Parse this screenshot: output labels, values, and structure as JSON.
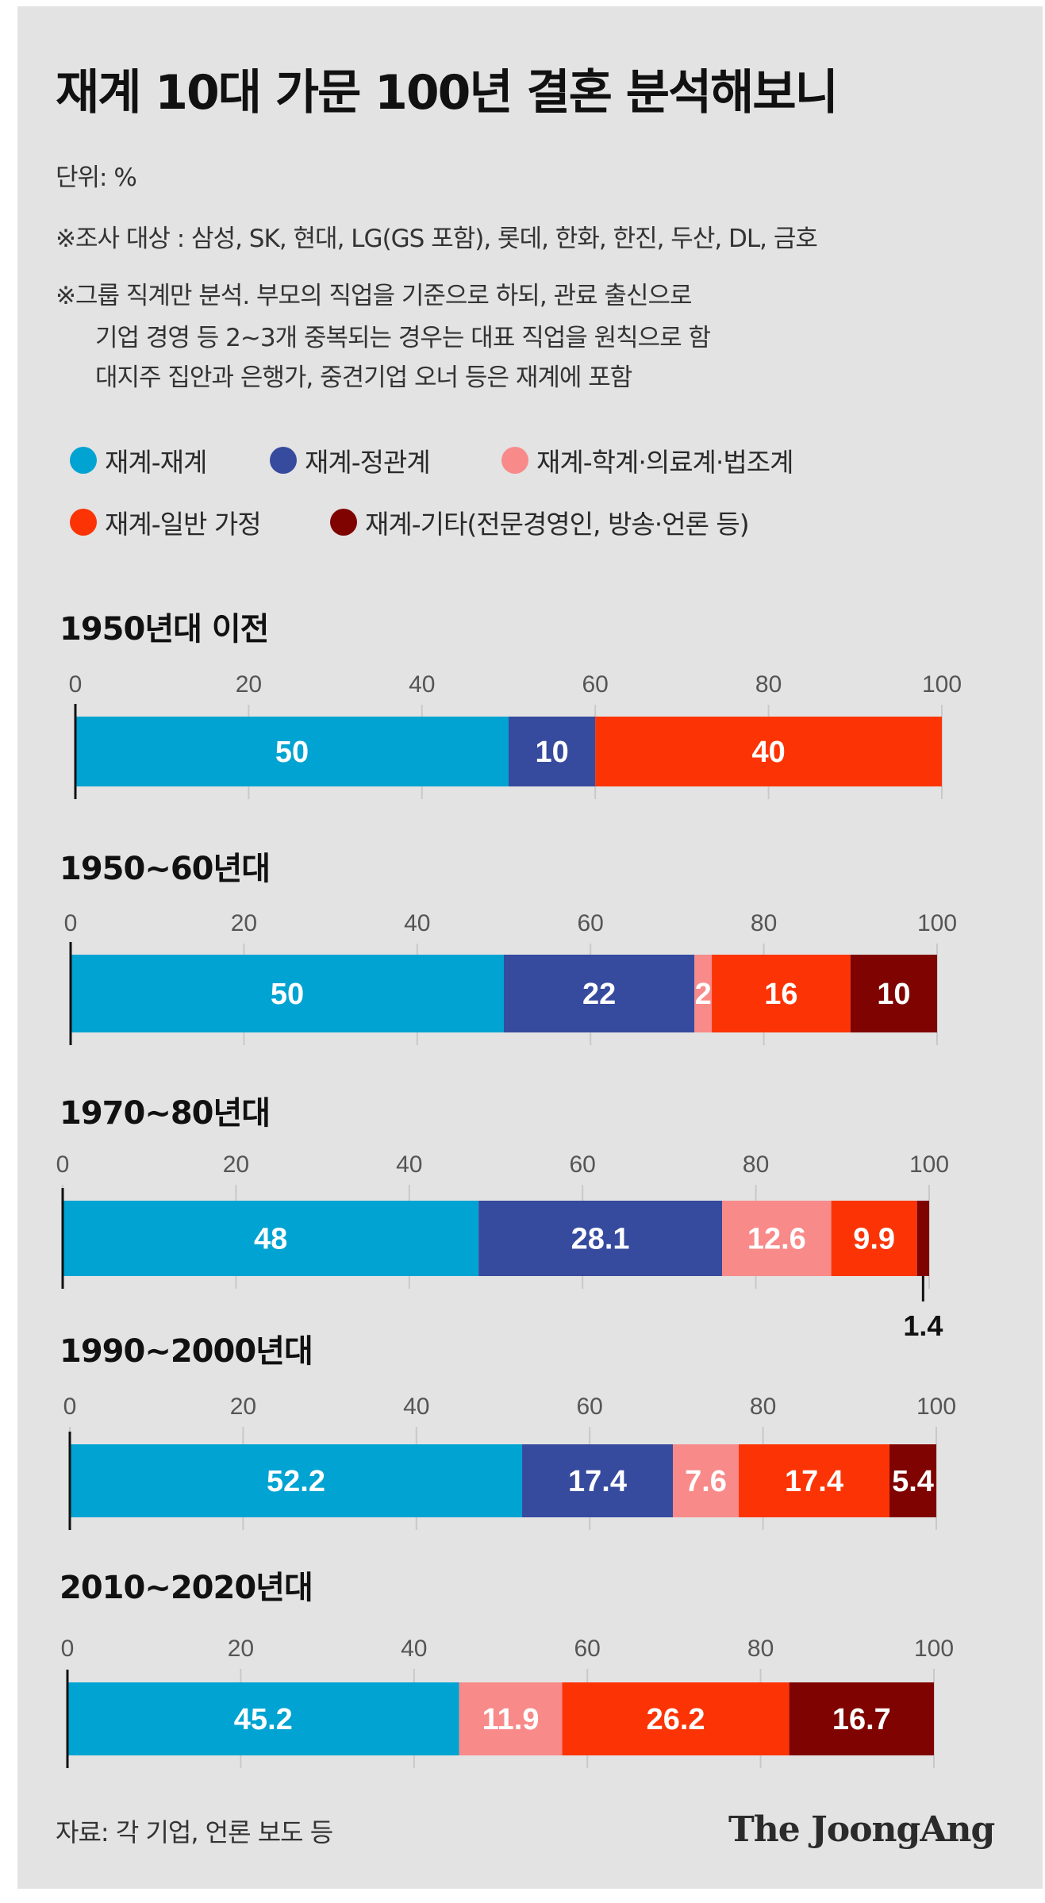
{
  "title": "재계 10대 가문 100년 결혼 분석해보니",
  "notes": {
    "unit": "단위: %",
    "survey": "※조사 대상 : 삼성, SK, 현대, LG(GS 포함), 롯데, 한화, 한진, 두산, DL, 금호",
    "method_1": "※그룹 직계만 분석. 부모의 직업을 기준으로 하되, 관료 출신으로",
    "method_2": "기업 경영 등 2~3개 중복되는 경우는 대표 직업을 원칙으로 함",
    "method_3": "대지주 집안과 은행가, 중견기업 오너 등은 재계에 포함"
  },
  "legend": [
    {
      "label": "재계-재계",
      "color": "#00a3d2"
    },
    {
      "label": "재계-정관계",
      "color": "#364a9e"
    },
    {
      "label": "재계-학계·의료계·법조계",
      "color": "#f98a8a"
    },
    {
      "label": "재계-일반 가정",
      "color": "#fc3405"
    },
    {
      "label": "재계-기타(전문경영인, 방송·언론 등)",
      "color": "#7f0300"
    }
  ],
  "chart_data": {
    "type": "bar",
    "orientation": "horizontal-stacked",
    "xlim": [
      0,
      100
    ],
    "x_ticks": [
      "0",
      "20",
      "40",
      "60",
      "80",
      "100"
    ],
    "series": [
      {
        "name": "재계-재계",
        "color": "#00a3d2"
      },
      {
        "name": "재계-정관계",
        "color": "#364a9e"
      },
      {
        "name": "재계-학계·의료계·법조계",
        "color": "#f98a8a"
      },
      {
        "name": "재계-일반 가정",
        "color": "#fc3405"
      },
      {
        "name": "재계-기타(전문경영인, 방송·언론 등)",
        "color": "#7f0300"
      }
    ],
    "categories": [
      {
        "label": "1950년대 이전",
        "values": [
          50,
          10,
          0,
          40,
          0
        ],
        "labels": [
          "50",
          "10",
          "",
          "40",
          ""
        ]
      },
      {
        "label": "1950~60년대",
        "values": [
          50,
          22,
          2,
          16,
          10
        ],
        "labels": [
          "50",
          "22",
          "2",
          "16",
          "10"
        ]
      },
      {
        "label": "1970~80년대",
        "values": [
          48,
          28.1,
          12.6,
          9.9,
          1.4
        ],
        "labels": [
          "48",
          "28.1",
          "12.6",
          "9.9",
          "1.4"
        ]
      },
      {
        "label": "1990~2000년대",
        "values": [
          52.2,
          17.4,
          7.6,
          17.4,
          5.4
        ],
        "labels": [
          "52.2",
          "17.4",
          "7.6",
          "17.4",
          "5.4"
        ]
      },
      {
        "label": "2010~2020년대",
        "values": [
          45.2,
          0,
          11.9,
          26.2,
          16.7
        ],
        "labels": [
          "45.2",
          "",
          "11.9",
          "26.2",
          "16.7"
        ]
      }
    ]
  },
  "source": "자료: 각 기업, 언론 보도 등",
  "brand": "The JoongAng"
}
